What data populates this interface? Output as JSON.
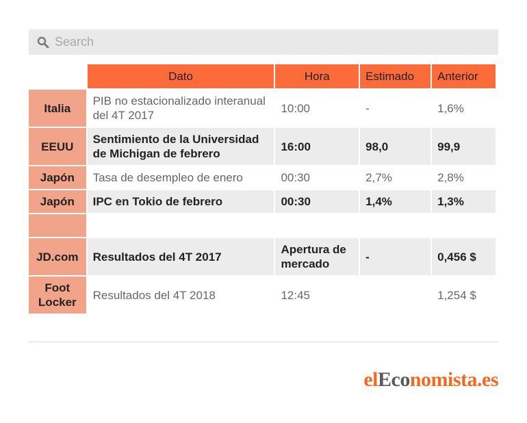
{
  "search": {
    "placeholder": "Search",
    "icon": "search-icon"
  },
  "table": {
    "headers": {
      "dato": "Dato",
      "hora": "Hora",
      "estimado": "Estimado",
      "anterior": "Anterior"
    },
    "rows": [
      {
        "country": "Italia",
        "dato": "PIB no estacionalizado interanual del 4T 2017",
        "hora": "10:00",
        "estimado": "-",
        "anterior": "1,6%"
      },
      {
        "country": "EEUU",
        "dato": "Sentimiento de la Universidad de Michigan de febrero",
        "hora": "16:00",
        "estimado": "98,0",
        "anterior": "99,9"
      },
      {
        "country": "Japón",
        "dato": "Tasa de desempleo de enero",
        "hora": "00:30",
        "estimado": "2,7%",
        "anterior": "2,8%"
      },
      {
        "country": "Japón",
        "dato": "IPC en Tokio de febrero",
        "hora": "00:30",
        "estimado": "1,4%",
        "anterior": "1,3%"
      },
      {
        "country": "JD.com",
        "dato": "Resultados del 4T 2017",
        "hora": "Apertura de mercado",
        "estimado": "-",
        "anterior": "0,456 $"
      },
      {
        "country": "Foot Locker",
        "dato": "Resultados del 4T 2018",
        "hora": "12:45",
        "estimado": "",
        "anterior": "1,254 $"
      }
    ]
  },
  "logo": {
    "part1": "el",
    "part2": "Eco",
    "part3": "nomista.es"
  },
  "colors": {
    "header": "#fe6b3b",
    "country": "#f2a48a",
    "stripe": "#ececec",
    "brand": "#f26a21"
  }
}
